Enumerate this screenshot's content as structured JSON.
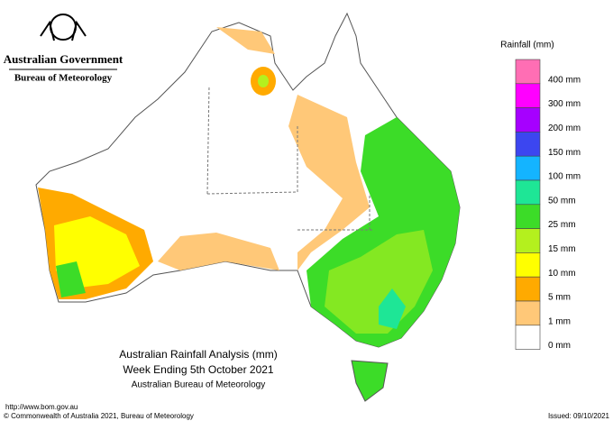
{
  "header": {
    "government": "Australian Government",
    "bureau": "Bureau of Meteorology"
  },
  "legend": {
    "title": "Rainfall (mm)",
    "items": [
      {
        "label": "400 mm",
        "color": "#ff6eb4"
      },
      {
        "label": "300 mm",
        "color": "#ff00ff"
      },
      {
        "label": "200 mm",
        "color": "#a600ff"
      },
      {
        "label": "150 mm",
        "color": "#3c46f0"
      },
      {
        "label": "100 mm",
        "color": "#14b4ff"
      },
      {
        "label": "50 mm",
        "color": "#1ee696"
      },
      {
        "label": "25 mm",
        "color": "#3cdc28"
      },
      {
        "label": "15 mm",
        "color": "#b4f01e"
      },
      {
        "label": "10 mm",
        "color": "#ffff00"
      },
      {
        "label": "5 mm",
        "color": "#ffaa00"
      },
      {
        "label": "1 mm",
        "color": "#ffc878"
      },
      {
        "label": "0 mm",
        "color": "#ffffff"
      }
    ]
  },
  "title": {
    "line1": "Australian Rainfall Analysis (mm)",
    "line2": "Week Ending 5th October 2021",
    "line3": "Australian Bureau of Meteorology"
  },
  "footer": {
    "url": "http://www.bom.gov.au",
    "copyright": "© Commonwealth of Australia 2021, Bureau of Meteorology",
    "issued": "Issued: 09/10/2021"
  }
}
